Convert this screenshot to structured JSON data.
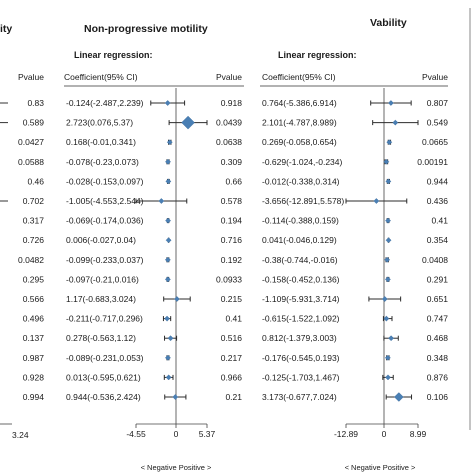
{
  "left_fragment": {
    "header": "ity",
    "col_header": "Pvalue",
    "pvalues": [
      "0.83",
      "0.589",
      "0.0427",
      "0.0588",
      "0.46",
      "0.702",
      "0.317",
      "0.726",
      "0.0482",
      "0.295",
      "0.566",
      "0.496",
      "0.137",
      "0.987",
      "0.928",
      "0.994"
    ],
    "axis_tick": "3.24"
  },
  "chart_data": [
    {
      "type": "forest",
      "title": "Non-progressive motility",
      "subtitle": "Linear regression:",
      "coef_header": "Coefficient(95% CI)",
      "p_header": "Pvalue",
      "coef_labels": [
        "-0.124(-2.487,2.239)",
        "2.723(0.076,5.37)",
        "0.168(-0.01,0.341)",
        "-0.078(-0.23,0.073)",
        "-0.028(-0.153,0.097)",
        "-1.005(-4.553,2.544)",
        "-0.069(-0.174,0.036)",
        "0.006(-0.027,0.04)",
        "-0.099(-0.233,0.037)",
        "-0.097(-0.21,0.016)",
        "1.17(-0.683,3.024)",
        "-0.211(-0.717,0.296)",
        "0.278(-0.563,1.12)",
        "-0.089(-0.231,0.053)",
        "0.013(-0.595,0.621)",
        "0.944(-0.536,2.424)"
      ],
      "pvalues": [
        "0.918",
        "0.0439",
        "0.0638",
        "0.309",
        "0.66",
        "0.578",
        "0.194",
        "0.716",
        "0.192",
        "0.0933",
        "0.215",
        "0.41",
        "0.516",
        "0.217",
        "0.966",
        "0.21"
      ],
      "estimates": [
        -0.124,
        2.723,
        0.168,
        -0.078,
        -0.028,
        -1.005,
        -0.069,
        0.006,
        -0.099,
        -0.097,
        1.17,
        -0.211,
        0.278,
        -0.089,
        0.013,
        0.944
      ],
      "lower": [
        -2.487,
        0.076,
        -0.01,
        -0.23,
        -0.153,
        -4.553,
        -0.174,
        -0.027,
        -0.233,
        -0.21,
        -0.683,
        -0.717,
        -0.563,
        -0.231,
        -0.595,
        -0.536
      ],
      "upper": [
        2.239,
        5.37,
        0.341,
        0.073,
        0.097,
        2.544,
        0.036,
        0.04,
        0.037,
        0.016,
        3.024,
        0.296,
        1.12,
        0.053,
        0.621,
        2.424
      ],
      "xlim": [
        -4.55,
        5.37
      ],
      "x_ticks": [
        "-4.55",
        "0",
        "5.37"
      ],
      "axis_caption": "< Negative  Positive >"
    },
    {
      "type": "forest",
      "title": "Vability",
      "subtitle": "Linear regression:",
      "coef_header": "Coefficient(95% CI)",
      "p_header": "Pvalue",
      "coef_labels": [
        "0.764(-5.386,6.914)",
        "2.101(-4.787,8.989)",
        "0.269(-0.058,0.654)",
        "-0.629(-1.024,-0.234)",
        "-0.012(-0.338,0.314)",
        "-3.656(-12.891,5.578)",
        "-0.114(-0.388,0.159)",
        "0.041(-0.046,0.129)",
        "-0.38(-0.744,-0.016)",
        "-0.158(-0.452,0.136)",
        "-1.109(-5.931,3.714)",
        "-0.615(-1.522,1.092)",
        "0.812(-1.379,3.003)",
        "-0.176(-0.545,0.193)",
        "-0.125(-1.703,1.467)",
        "3.173(-0.677,7.024)"
      ],
      "pvalues": [
        "0.807",
        "0.549",
        "0.0665",
        "0.00191",
        "0.944",
        "0.436",
        "0.41",
        "0.354",
        "0.0408",
        "0.291",
        "0.651",
        "0.747",
        "0.468",
        "0.348",
        "0.876",
        "0.106"
      ],
      "estimates": [
        0.764,
        2.101,
        0.269,
        -0.629,
        -0.012,
        -3.656,
        -0.114,
        0.041,
        -0.38,
        -0.158,
        -1.109,
        -0.615,
        0.812,
        -0.176,
        -0.125,
        3.173
      ],
      "lower": [
        -5.386,
        -4.787,
        -0.058,
        -1.024,
        -0.338,
        -12.891,
        -0.388,
        -0.046,
        -0.744,
        -0.452,
        -5.931,
        -1.522,
        -1.379,
        -0.545,
        -1.703,
        -0.677
      ],
      "upper": [
        6.914,
        8.989,
        0.654,
        -0.234,
        0.314,
        5.578,
        0.159,
        0.129,
        -0.016,
        0.136,
        3.714,
        1.092,
        3.003,
        0.193,
        1.467,
        7.024
      ],
      "xlim": [
        -12.89,
        8.99
      ],
      "x_ticks": [
        "-12.89",
        "0",
        "8.99"
      ],
      "axis_caption": "< Negative  Positive >"
    }
  ]
}
